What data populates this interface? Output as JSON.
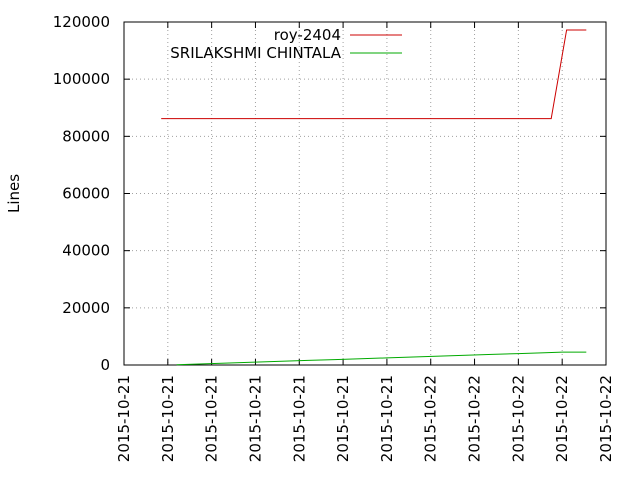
{
  "chart_data": {
    "type": "line",
    "title": "",
    "xlabel": "",
    "ylabel": "Lines",
    "ylim": [
      0,
      120000
    ],
    "yticks": [
      0,
      20000,
      40000,
      60000,
      80000,
      100000,
      120000
    ],
    "xlim": [
      0,
      11
    ],
    "xticks": [
      "2015-10-21",
      "2015-10-21",
      "2015-10-21",
      "2015-10-21",
      "2015-10-21",
      "2015-10-21",
      "2015-10-21",
      "2015-10-22",
      "2015-10-22",
      "2015-10-22",
      "2015-10-22",
      "2015-10-22"
    ],
    "grid": true,
    "legend_position": "top-right",
    "series": [
      {
        "name": "roy-2404",
        "color": "#cc0000",
        "x": [
          0.85,
          9.75,
          10.1,
          10.55
        ],
        "y": [
          86200,
          86200,
          117200,
          117200
        ]
      },
      {
        "name": "SRILAKSHMI CHINTALA",
        "color": "#00aa00",
        "x": [
          1.2,
          1.8,
          2.4,
          3.0,
          3.6,
          4.2,
          4.8,
          5.4,
          6.0,
          6.6,
          7.2,
          7.8,
          8.4,
          9.0,
          9.6,
          10.0,
          10.55
        ],
        "y": [
          100,
          400,
          700,
          1000,
          1300,
          1600,
          1900,
          2200,
          2500,
          2800,
          3100,
          3400,
          3700,
          4000,
          4300,
          4500,
          4500
        ]
      }
    ]
  }
}
